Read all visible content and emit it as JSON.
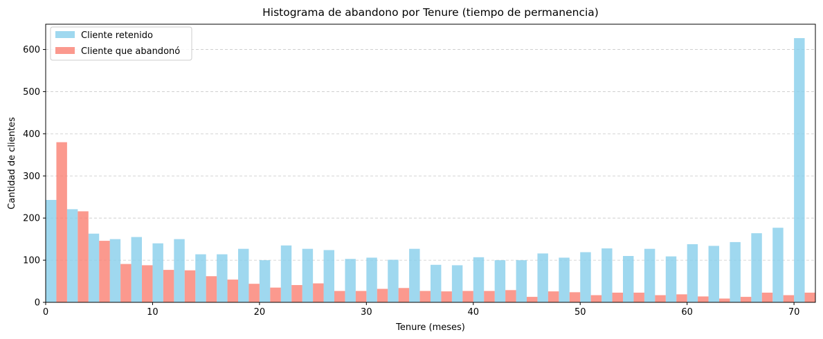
{
  "chart_data": {
    "type": "bar",
    "title": "Histograma de abandono por Tenure (tiempo de permanencia)",
    "xlabel": "Tenure (meses)",
    "ylabel": "Cantidad de clientes",
    "xlim": [
      0,
      72
    ],
    "ylim": [
      0,
      660
    ],
    "bin_width": 2.0,
    "bin_starts": [
      0,
      2,
      4,
      6,
      8,
      10,
      12,
      14,
      16,
      18,
      20,
      22,
      24,
      26,
      28,
      30,
      32,
      34,
      36,
      38,
      40,
      42,
      44,
      46,
      48,
      50,
      52,
      54,
      56,
      58,
      60,
      62,
      64,
      66,
      68,
      70
    ],
    "x_ticks": [
      0,
      10,
      20,
      30,
      40,
      50,
      60,
      70
    ],
    "y_ticks": [
      0,
      100,
      200,
      300,
      400,
      500,
      600
    ],
    "grid": "y dashed",
    "legend_position": "top-left",
    "series": [
      {
        "name": "Cliente retenido",
        "color": "#87ceeb",
        "values": [
          243,
          221,
          163,
          150,
          155,
          140,
          150,
          114,
          114,
          127,
          100,
          135,
          127,
          124,
          103,
          106,
          101,
          127,
          89,
          88,
          107,
          100,
          100,
          116,
          106,
          119,
          128,
          110,
          127,
          109,
          138,
          134,
          143,
          164,
          177,
          627
        ]
      },
      {
        "name": "Cliente que abandonó",
        "color": "#fa8072",
        "values": [
          380,
          216,
          146,
          91,
          88,
          77,
          76,
          62,
          54,
          44,
          35,
          41,
          45,
          27,
          27,
          32,
          34,
          27,
          26,
          27,
          27,
          29,
          13,
          26,
          24,
          17,
          23,
          23,
          17,
          19,
          14,
          9,
          13,
          23,
          17,
          23
        ]
      }
    ]
  }
}
